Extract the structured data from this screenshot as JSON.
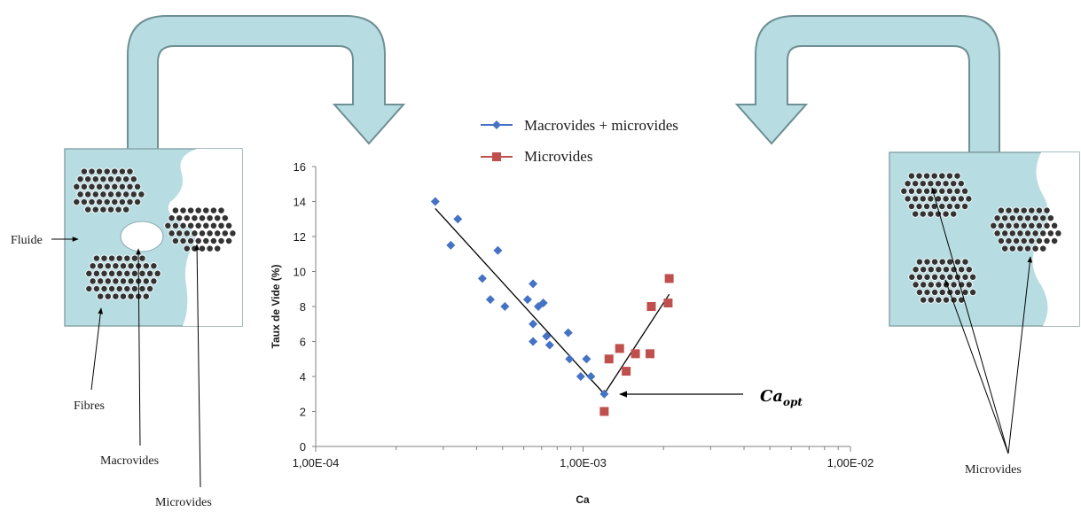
{
  "colors": {
    "fluid": "#b7dde2",
    "arrow_fill": "#b7dde2",
    "arrow_stroke": "#6e8f93",
    "series_macro": "#4472c4",
    "series_micro": "#c0504d",
    "fibre": "#333333"
  },
  "left_panel": {
    "labels": {
      "fluide": "Fluide",
      "fibres": "Fibres",
      "macrovides": "Macrovides",
      "microvides": "Microvides"
    }
  },
  "right_panel": {
    "labels": {
      "microvides": "Microvides"
    }
  },
  "annotation": {
    "ca_opt": "Ca",
    "ca_opt_sub": "opt"
  },
  "chart_data": {
    "type": "scatter",
    "xlabel": "Ca",
    "ylabel": "Taux de Vide (%)",
    "xscale": "log",
    "xlim": [
      0.0001,
      0.01
    ],
    "ylim": [
      0,
      16
    ],
    "x_ticks": [
      {
        "value": 0.0001,
        "label": "1,00E-04"
      },
      {
        "value": 0.001,
        "label": "1,00E-03"
      },
      {
        "value": 0.01,
        "label": "1,00E-02"
      }
    ],
    "y_ticks": [
      0,
      2,
      4,
      6,
      8,
      10,
      12,
      14,
      16
    ],
    "legend_position": "top",
    "series": [
      {
        "name": "Macrovides + microvides",
        "marker": "diamond",
        "color": "#4472c4",
        "points": [
          [
            0.00028,
            14.0
          ],
          [
            0.00032,
            11.5
          ],
          [
            0.00034,
            13.0
          ],
          [
            0.00042,
            9.6
          ],
          [
            0.00045,
            8.4
          ],
          [
            0.00048,
            11.2
          ],
          [
            0.00051,
            8.0
          ],
          [
            0.00062,
            8.4
          ],
          [
            0.00065,
            9.3
          ],
          [
            0.00065,
            7.0
          ],
          [
            0.00065,
            6.0
          ],
          [
            0.00068,
            8.0
          ],
          [
            0.00071,
            8.2
          ],
          [
            0.00073,
            6.3
          ],
          [
            0.00075,
            5.8
          ],
          [
            0.00088,
            6.5
          ],
          [
            0.00089,
            5.0
          ],
          [
            0.00098,
            4.0
          ],
          [
            0.00103,
            5.0
          ],
          [
            0.00107,
            4.0
          ],
          [
            0.0012,
            3.0
          ]
        ]
      },
      {
        "name": "Microvides",
        "marker": "square",
        "color": "#c0504d",
        "points": [
          [
            0.0012,
            2.0
          ],
          [
            0.00125,
            5.0
          ],
          [
            0.00137,
            5.6
          ],
          [
            0.00145,
            4.3
          ],
          [
            0.00157,
            5.3
          ],
          [
            0.00178,
            5.3
          ],
          [
            0.0018,
            8.0
          ],
          [
            0.00208,
            8.2
          ],
          [
            0.0021,
            9.6
          ]
        ]
      }
    ],
    "trend_lines": [
      [
        [
          0.00028,
          13.6
        ],
        [
          0.0012,
          3.0
        ]
      ],
      [
        [
          0.0012,
          3.0
        ],
        [
          0.0021,
          8.7
        ]
      ]
    ]
  }
}
